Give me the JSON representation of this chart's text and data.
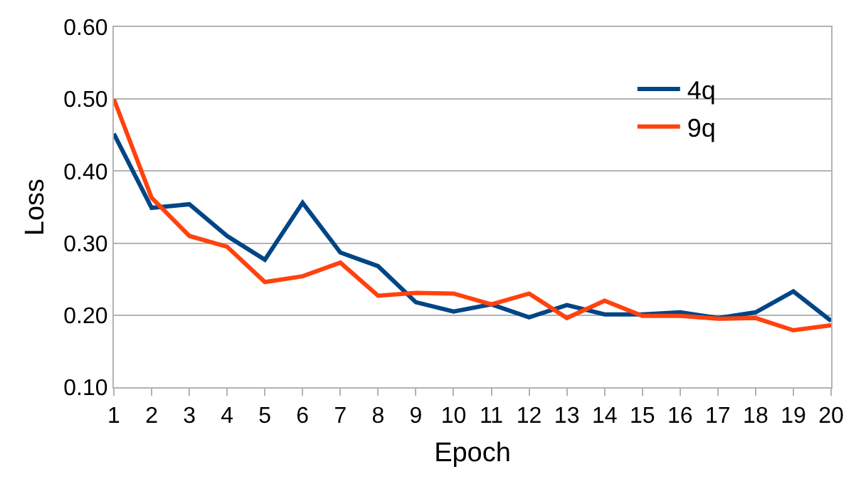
{
  "chart_data": {
    "type": "line",
    "xlabel": "Epoch",
    "ylabel": "Loss",
    "x": [
      1,
      2,
      3,
      4,
      5,
      6,
      7,
      8,
      9,
      10,
      11,
      12,
      13,
      14,
      15,
      16,
      17,
      18,
      19,
      20
    ],
    "series": [
      {
        "name": "4q",
        "color": "#004586",
        "values": [
          0.452,
          0.349,
          0.354,
          0.31,
          0.277,
          0.356,
          0.287,
          0.268,
          0.218,
          0.205,
          0.215,
          0.197,
          0.214,
          0.201,
          0.201,
          0.204,
          0.196,
          0.204,
          0.233,
          0.192
        ]
      },
      {
        "name": "9q",
        "color": "#ff420e",
        "values": [
          0.5,
          0.363,
          0.31,
          0.295,
          0.246,
          0.254,
          0.273,
          0.227,
          0.231,
          0.23,
          0.215,
          0.23,
          0.196,
          0.22,
          0.199,
          0.199,
          0.195,
          0.196,
          0.179,
          0.186
        ]
      }
    ],
    "xlim": [
      1,
      20
    ],
    "xticks": [
      1,
      2,
      3,
      4,
      5,
      6,
      7,
      8,
      9,
      10,
      11,
      12,
      13,
      14,
      15,
      16,
      17,
      18,
      19,
      20
    ],
    "ylim": [
      0.1,
      0.6
    ],
    "yticks": [
      {
        "value": 0.1,
        "label": "0.10"
      },
      {
        "value": 0.2,
        "label": "0.20"
      },
      {
        "value": 0.3,
        "label": "0.30"
      },
      {
        "value": 0.4,
        "label": "0.40"
      },
      {
        "value": 0.5,
        "label": "0.50"
      },
      {
        "value": 0.6,
        "label": "0.60"
      }
    ],
    "grid": "y",
    "legend": "top right",
    "marker": "none",
    "line_style": "solid"
  }
}
